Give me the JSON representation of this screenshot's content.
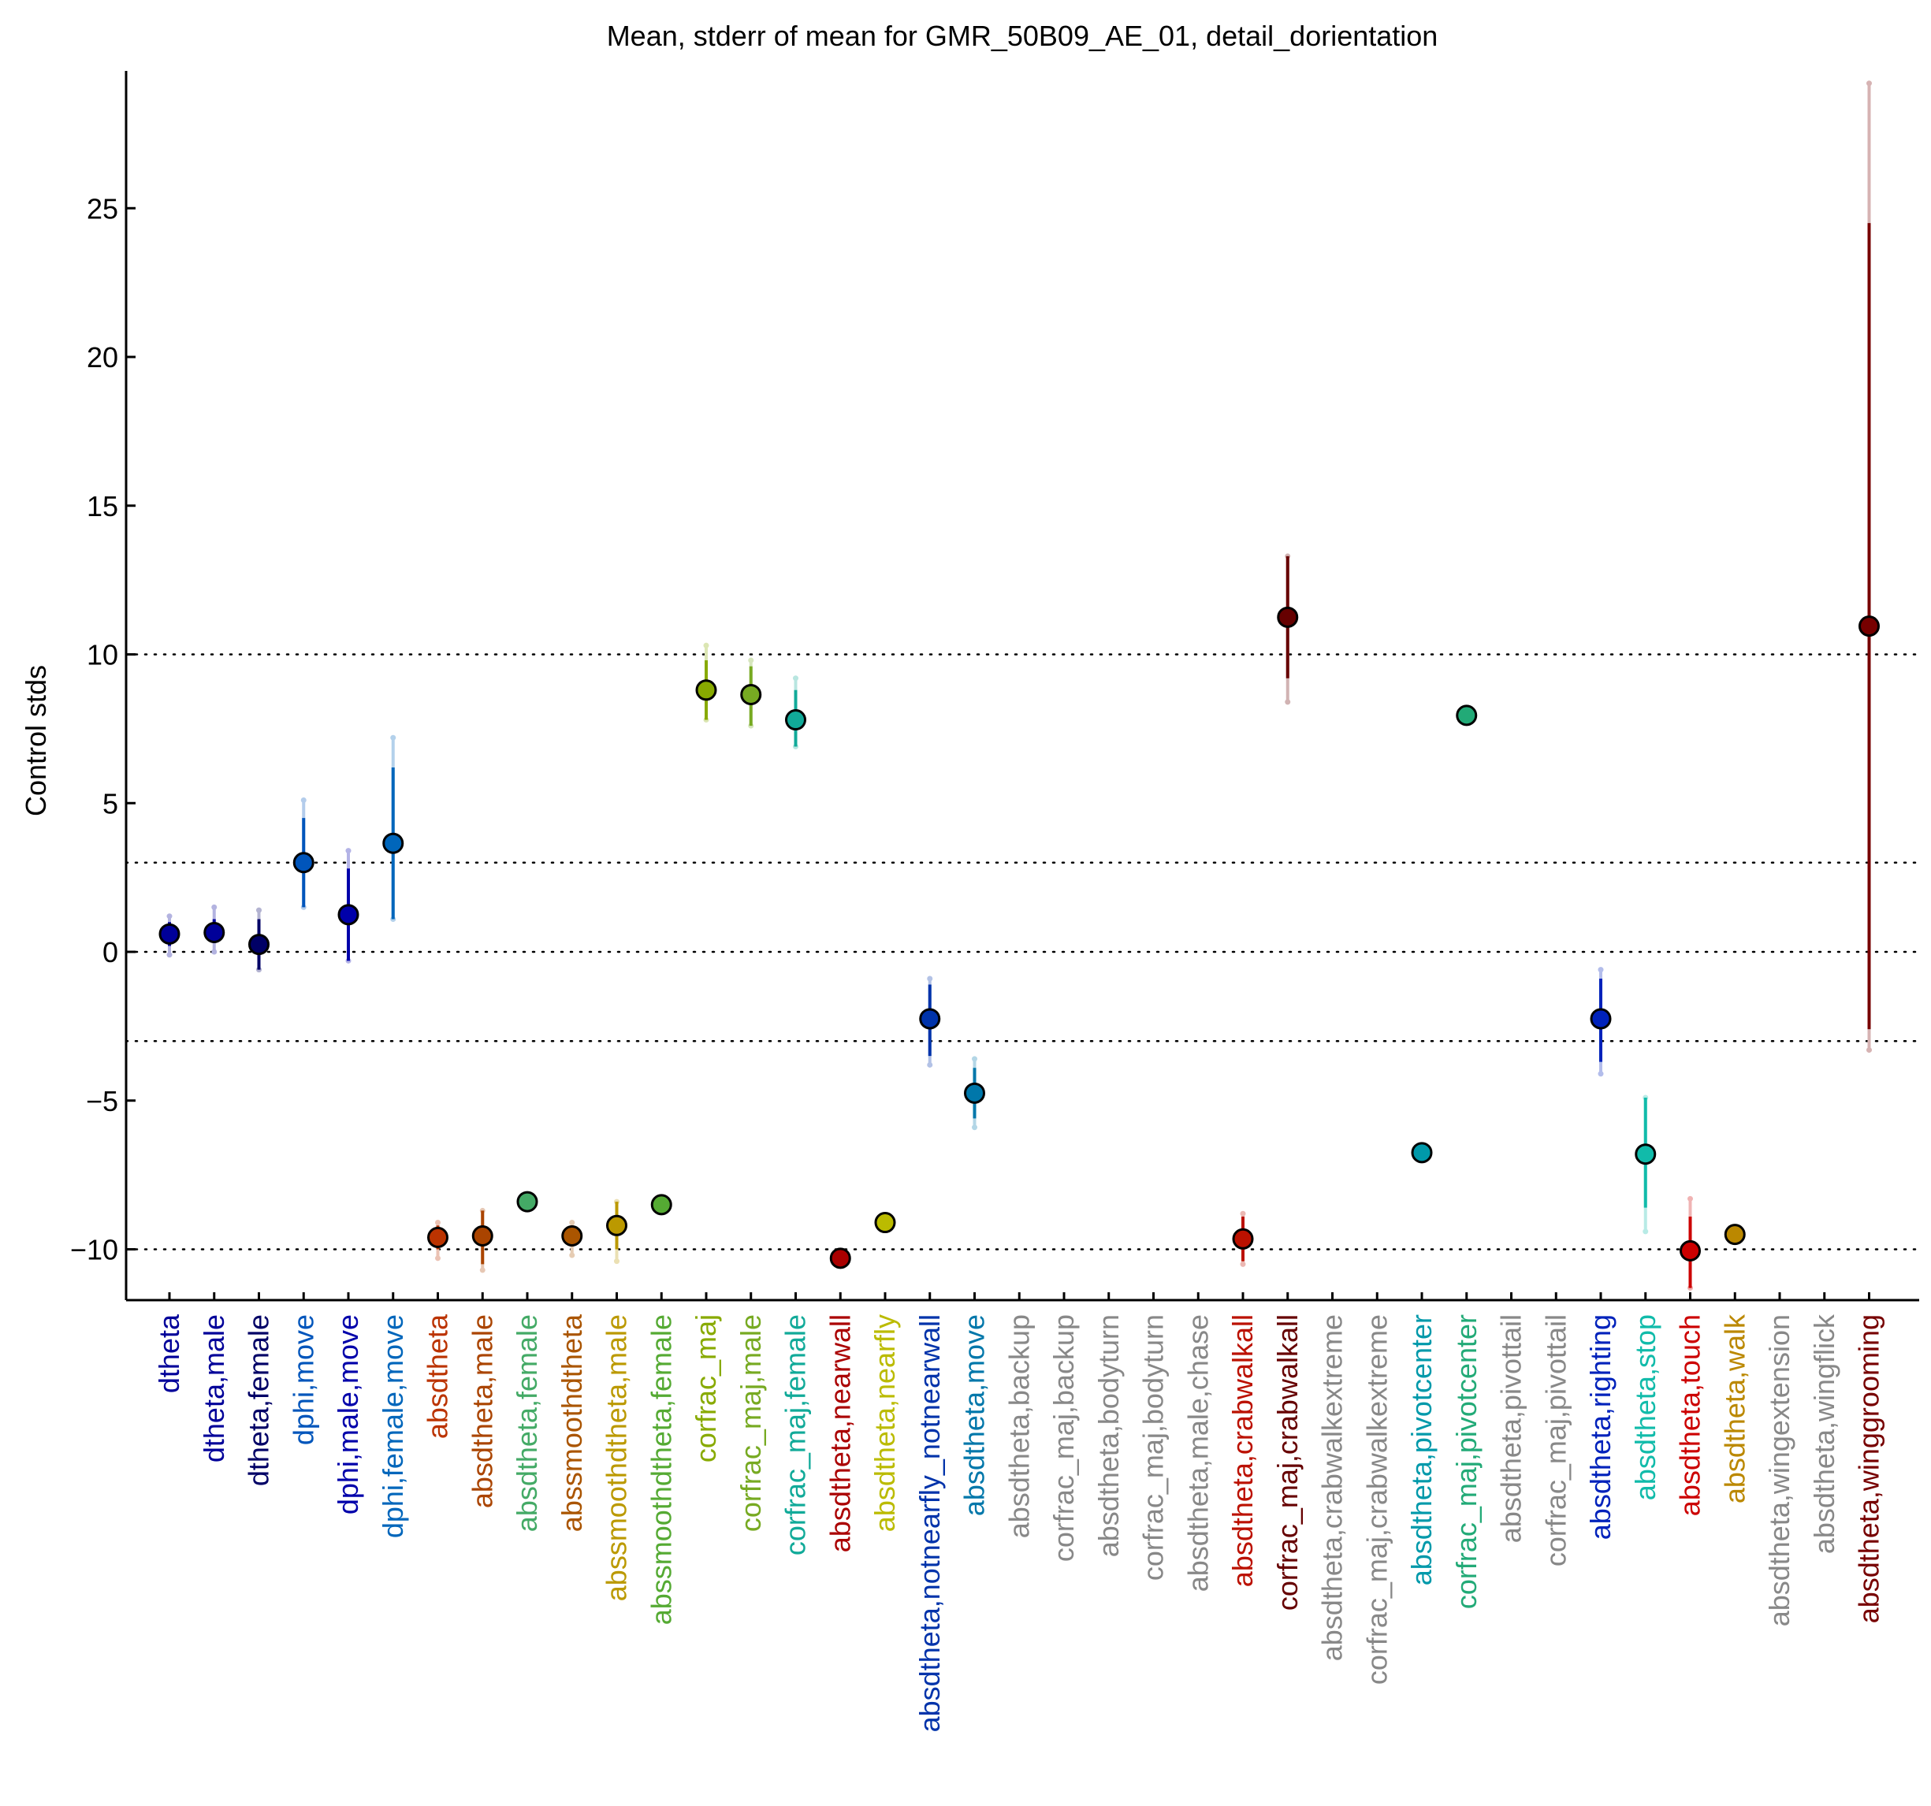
{
  "chart_data": {
    "type": "scatter",
    "title": "Mean, stderr of mean for GMR_50B09_AE_01, detail_dorientation",
    "xlabel": "",
    "ylabel": "Control stds",
    "ylim": [
      -11.7,
      29.5
    ],
    "yticks": [
      -10,
      -5,
      0,
      5,
      10,
      15,
      20,
      25
    ],
    "ytick_labels": [
      "−10",
      "−5",
      "0",
      "5",
      "10",
      "15",
      "20",
      "25"
    ],
    "reference_lines": [
      -10,
      -3,
      0,
      3,
      10
    ],
    "grid": false,
    "categories": [
      {
        "label": "dtheta",
        "color": "#000099",
        "mean": 0.6,
        "se_low": 0.2,
        "se_high": 1.0,
        "ci_low": -0.1,
        "ci_high": 1.2
      },
      {
        "label": "dtheta,male",
        "color": "#000099",
        "mean": 0.65,
        "se_low": 0.3,
        "se_high": 1.1,
        "ci_low": 0.0,
        "ci_high": 1.5
      },
      {
        "label": "dtheta,female",
        "color": "#000066",
        "mean": 0.25,
        "se_low": -0.6,
        "se_high": 1.1,
        "ci_low": -0.6,
        "ci_high": 1.4
      },
      {
        "label": "dphi,move",
        "color": "#0055bb",
        "mean": 3.0,
        "se_low": 1.5,
        "se_high": 4.5,
        "ci_low": 1.5,
        "ci_high": 5.1
      },
      {
        "label": "dphi,male,move",
        "color": "#0000aa",
        "mean": 1.25,
        "se_low": -0.3,
        "se_high": 2.8,
        "ci_low": -0.3,
        "ci_high": 3.4
      },
      {
        "label": "dphi,female,move",
        "color": "#0066bb",
        "mean": 3.65,
        "se_low": 1.1,
        "se_high": 6.2,
        "ci_low": 1.1,
        "ci_high": 7.2
      },
      {
        "label": "absdtheta",
        "color": "#bb3300",
        "mean": -9.6,
        "se_low": -10.0,
        "se_high": -9.2,
        "ci_low": -10.3,
        "ci_high": -9.1
      },
      {
        "label": "absdtheta,male",
        "color": "#aa4400",
        "mean": -9.55,
        "se_low": -10.5,
        "se_high": -8.7,
        "ci_low": -10.7,
        "ci_high": -8.7
      },
      {
        "label": "absdtheta,female",
        "color": "#44aa66",
        "mean": -8.4,
        "se_low": -8.4,
        "se_high": -8.4,
        "ci_low": -8.4,
        "ci_high": -8.4
      },
      {
        "label": "abssmoothdtheta",
        "color": "#aa5500",
        "mean": -9.55,
        "se_low": -9.9,
        "se_high": -9.2,
        "ci_low": -10.2,
        "ci_high": -9.1
      },
      {
        "label": "abssmoothdtheta,male",
        "color": "#bb9900",
        "mean": -9.2,
        "se_low": -10.0,
        "se_high": -8.4,
        "ci_low": -10.4,
        "ci_high": -8.4
      },
      {
        "label": "abssmoothdtheta,female",
        "color": "#55aa33",
        "mean": -8.5,
        "se_low": -8.5,
        "se_high": -8.5,
        "ci_low": -8.5,
        "ci_high": -8.5
      },
      {
        "label": "corfrac_maj",
        "color": "#88aa00",
        "mean": 8.8,
        "se_low": 7.8,
        "se_high": 9.8,
        "ci_low": 7.8,
        "ci_high": 10.3
      },
      {
        "label": "corfrac_maj,male",
        "color": "#77aa22",
        "mean": 8.65,
        "se_low": 7.6,
        "se_high": 9.6,
        "ci_low": 7.6,
        "ci_high": 9.8
      },
      {
        "label": "corfrac_maj,female",
        "color": "#11aa99",
        "mean": 7.8,
        "se_low": 6.9,
        "se_high": 8.8,
        "ci_low": 6.9,
        "ci_high": 9.2
      },
      {
        "label": "absdtheta,nearwall",
        "color": "#aa0000",
        "mean": -10.3,
        "se_low": -10.3,
        "se_high": -10.3,
        "ci_low": -10.3,
        "ci_high": -10.3
      },
      {
        "label": "absdtheta,nearfly",
        "color": "#bbbb00",
        "mean": -9.1,
        "se_low": -9.1,
        "se_high": -9.1,
        "ci_low": -9.1,
        "ci_high": -9.1
      },
      {
        "label": "absdtheta,notnearfly_notnearwall",
        "color": "#0033aa",
        "mean": -2.25,
        "se_low": -3.5,
        "se_high": -1.1,
        "ci_low": -3.8,
        "ci_high": -0.9
      },
      {
        "label": "absdtheta,move",
        "color": "#0077aa",
        "mean": -4.75,
        "se_low": -5.6,
        "se_high": -3.9,
        "ci_low": -5.9,
        "ci_high": -3.6
      },
      {
        "label": "absdtheta,backup",
        "color": "#888888",
        "mean": null,
        "se_low": null,
        "se_high": null,
        "ci_low": null,
        "ci_high": null
      },
      {
        "label": "corfrac_maj,backup",
        "color": "#888888",
        "mean": null,
        "se_low": null,
        "se_high": null,
        "ci_low": null,
        "ci_high": null
      },
      {
        "label": "absdtheta,bodyturn",
        "color": "#888888",
        "mean": null,
        "se_low": null,
        "se_high": null,
        "ci_low": null,
        "ci_high": null
      },
      {
        "label": "corfrac_maj,bodyturn",
        "color": "#888888",
        "mean": null,
        "se_low": null,
        "se_high": null,
        "ci_low": null,
        "ci_high": null
      },
      {
        "label": "absdtheta,male,chase",
        "color": "#888888",
        "mean": null,
        "se_low": null,
        "se_high": null,
        "ci_low": null,
        "ci_high": null
      },
      {
        "label": "absdtheta,crabwalkall",
        "color": "#bb1100",
        "mean": -9.65,
        "se_low": -10.4,
        "se_high": -8.9,
        "ci_low": -10.5,
        "ci_high": -8.8
      },
      {
        "label": "corfrac_maj,crabwalkall",
        "color": "#660000",
        "mean": 11.25,
        "se_low": 9.2,
        "se_high": 13.3,
        "ci_low": 8.4,
        "ci_high": 13.3
      },
      {
        "label": "absdtheta,crabwalkextreme",
        "color": "#888888",
        "mean": null,
        "se_low": null,
        "se_high": null,
        "ci_low": null,
        "ci_high": null
      },
      {
        "label": "corfrac_maj,crabwalkextreme",
        "color": "#888888",
        "mean": null,
        "se_low": null,
        "se_high": null,
        "ci_low": null,
        "ci_high": null
      },
      {
        "label": "absdtheta,pivotcenter",
        "color": "#0099aa",
        "mean": -6.75,
        "se_low": -6.75,
        "se_high": -6.75,
        "ci_low": -6.75,
        "ci_high": -6.75
      },
      {
        "label": "corfrac_maj,pivotcenter",
        "color": "#22aa77",
        "mean": 7.95,
        "se_low": 7.95,
        "se_high": 7.95,
        "ci_low": 7.95,
        "ci_high": 7.95
      },
      {
        "label": "absdtheta,pivottail",
        "color": "#888888",
        "mean": null,
        "se_low": null,
        "se_high": null,
        "ci_low": null,
        "ci_high": null
      },
      {
        "label": "corfrac_maj,pivottail",
        "color": "#888888",
        "mean": null,
        "se_low": null,
        "se_high": null,
        "ci_low": null,
        "ci_high": null
      },
      {
        "label": "absdtheta,righting",
        "color": "#0022bb",
        "mean": -2.25,
        "se_low": -3.7,
        "se_high": -0.9,
        "ci_low": -4.1,
        "ci_high": -0.6
      },
      {
        "label": "absdtheta,stop",
        "color": "#11bbaa",
        "mean": -6.8,
        "se_low": -8.6,
        "se_high": -4.9,
        "ci_low": -9.4,
        "ci_high": -4.9
      },
      {
        "label": "absdtheta,touch",
        "color": "#cc0000",
        "mean": -10.05,
        "se_low": -11.3,
        "se_high": -8.9,
        "ci_low": -11.3,
        "ci_high": -8.3
      },
      {
        "label": "absdtheta,walk",
        "color": "#bb8800",
        "mean": -9.5,
        "se_low": -9.5,
        "se_high": -9.5,
        "ci_low": -9.5,
        "ci_high": -9.5
      },
      {
        "label": "absdtheta,wingextension",
        "color": "#888888",
        "mean": null,
        "se_low": null,
        "se_high": null,
        "ci_low": null,
        "ci_high": null
      },
      {
        "label": "absdtheta,wingflick",
        "color": "#888888",
        "mean": null,
        "se_low": null,
        "se_high": null,
        "ci_low": null,
        "ci_high": null
      },
      {
        "label": "absdtheta,winggrooming",
        "color": "#770000",
        "mean": 10.95,
        "se_low": -2.6,
        "se_high": 24.5,
        "ci_low": -3.3,
        "ci_high": 29.2
      }
    ]
  }
}
